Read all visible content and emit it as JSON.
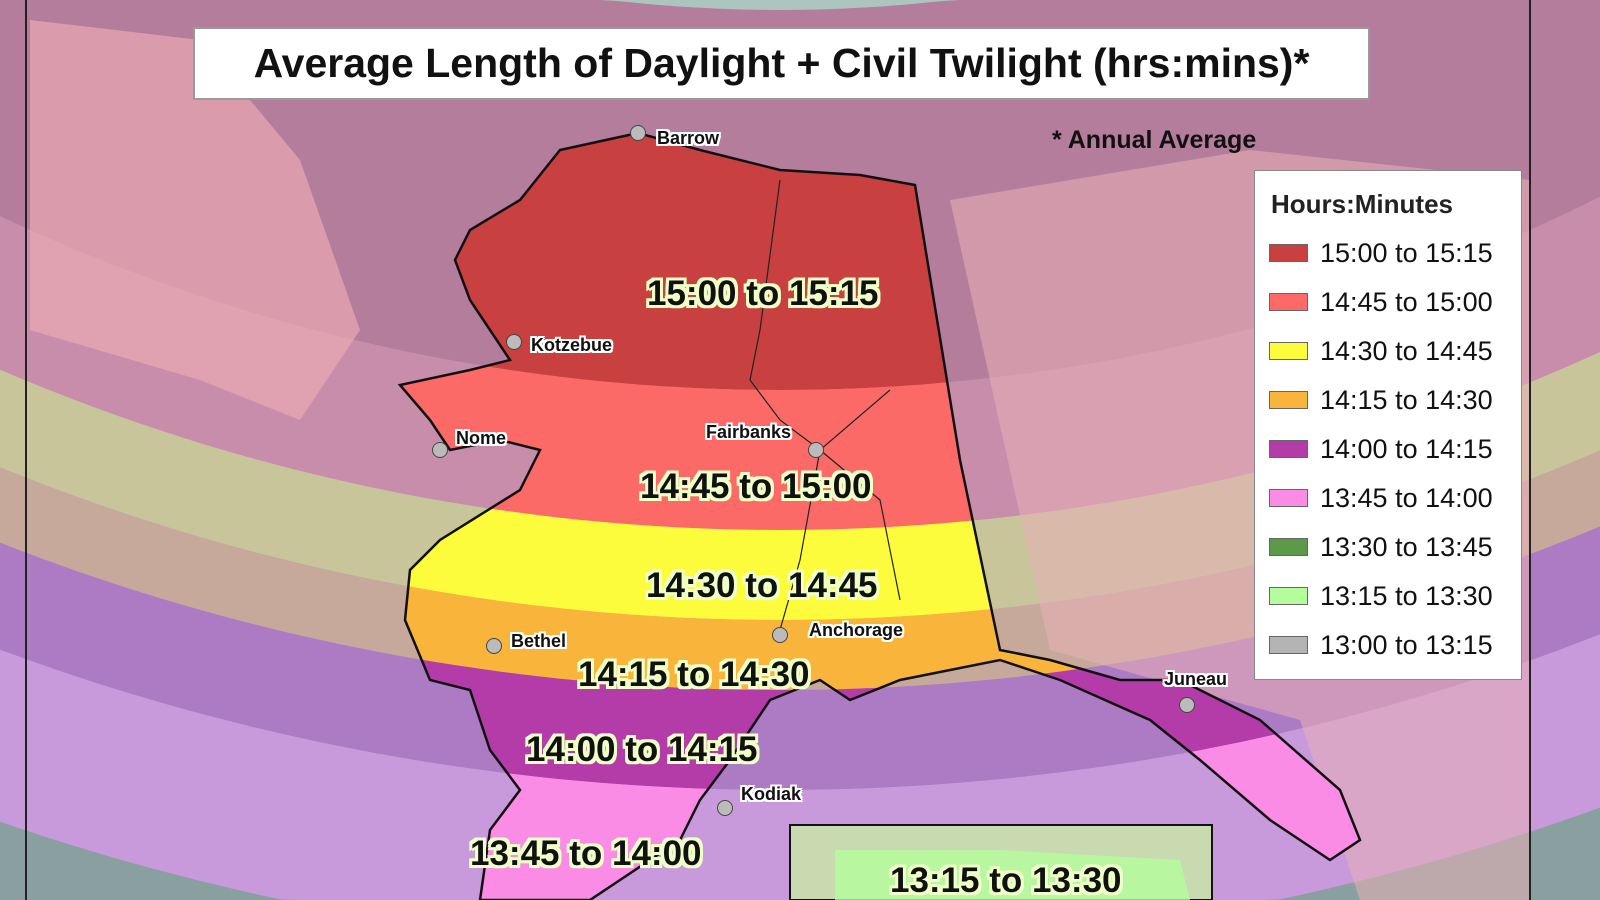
{
  "title": "Average Length of Daylight + Civil Twilight (hrs:mins)*",
  "note": "* Annual Average",
  "legend": {
    "title": "Hours:Minutes",
    "items": [
      {
        "label": "15:00 to 15:15",
        "color": "#c94040"
      },
      {
        "label": "14:45 to 15:00",
        "color": "#fb6a66"
      },
      {
        "label": "14:30 to 14:45",
        "color": "#fcfc3c"
      },
      {
        "label": "14:15 to 14:30",
        "color": "#f9b43c"
      },
      {
        "label": "14:00 to 14:15",
        "color": "#b43ca8"
      },
      {
        "label": "13:45 to 14:00",
        "color": "#fb8ce6"
      },
      {
        "label": "13:30 to 13:45",
        "color": "#5a9a48"
      },
      {
        "label": "13:15 to 13:30",
        "color": "#b4fc9c"
      },
      {
        "label": "13:00 to 13:15",
        "color": "#b4b4b4"
      }
    ]
  },
  "cities": [
    "Barrow",
    "Kotzebue",
    "Nome",
    "Fairbanks",
    "Bethel",
    "Anchorage",
    "Juneau",
    "Kodiak"
  ],
  "band_labels": [
    "15:00 to 15:15",
    "14:45 to 15:00",
    "14:30 to 14:45",
    "14:15 to 14:30",
    "14:00 to 14:15",
    "13:45 to 14:00",
    "13:15 to 13:30"
  ],
  "colors": {
    "water": "#a9a3d6",
    "outside_fade": 0.35
  }
}
